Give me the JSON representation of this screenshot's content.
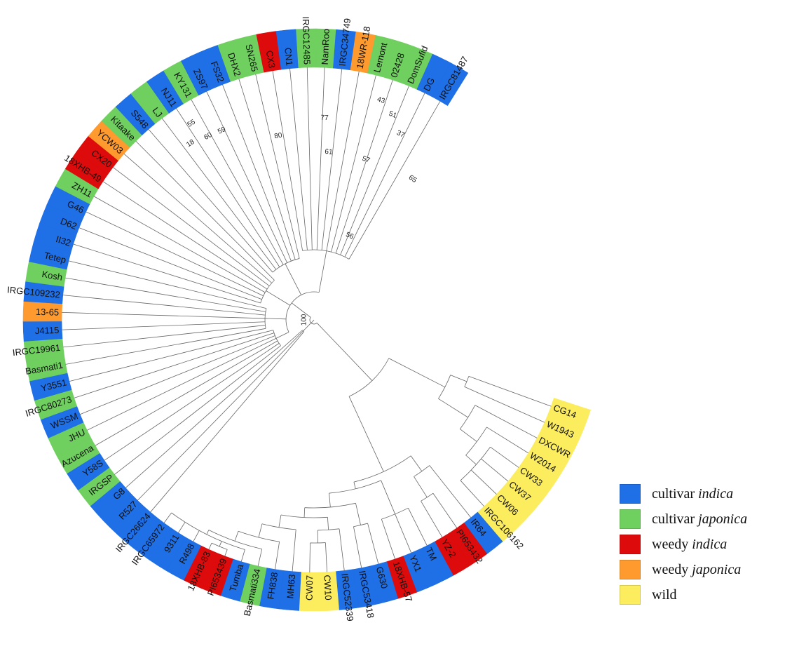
{
  "legend": [
    {
      "key": "ci",
      "text": "cultivar ",
      "italic": "indica",
      "color": "#1f6fe6"
    },
    {
      "key": "cj",
      "text": "cultivar ",
      "italic": "japonica",
      "color": "#6fcf5f"
    },
    {
      "key": "wi",
      "text": "weedy ",
      "italic": "indica",
      "color": "#dd0b0b"
    },
    {
      "key": "wj",
      "text": "weedy ",
      "italic": "japonica",
      "color": "#ff9a2e"
    },
    {
      "key": "wild",
      "text": "wild",
      "italic": "",
      "color": "#fced5e"
    }
  ],
  "colors": {
    "ci": "#1f6fe6",
    "cj": "#6fcf5f",
    "wi": "#dd0b0b",
    "wj": "#ff9a2e",
    "wild": "#fced5e"
  },
  "tips": [
    {
      "label": "CG14",
      "group": "wild"
    },
    {
      "label": "W1943",
      "group": "wild"
    },
    {
      "label": "DXCWR",
      "group": "wild"
    },
    {
      "label": "W2014",
      "group": "wild"
    },
    {
      "label": "CW33",
      "group": "wild"
    },
    {
      "label": "CW37",
      "group": "wild"
    },
    {
      "label": "CW06",
      "group": "wild"
    },
    {
      "label": "IRGC106162",
      "group": "wild"
    },
    {
      "label": "IR64",
      "group": "ci"
    },
    {
      "label": "PI653432",
      "group": "wi"
    },
    {
      "label": "YZ-2",
      "group": "wi"
    },
    {
      "label": "TM",
      "group": "ci"
    },
    {
      "label": "YX1",
      "group": "ci"
    },
    {
      "label": "18XHB-57",
      "group": "wi"
    },
    {
      "label": "G630",
      "group": "ci"
    },
    {
      "label": "IRGC53418",
      "group": "ci"
    },
    {
      "label": "IRGC52339",
      "group": "ci"
    },
    {
      "label": "CW10",
      "group": "wild"
    },
    {
      "label": "CW07",
      "group": "wild"
    },
    {
      "label": "MH63",
      "group": "ci"
    },
    {
      "label": "FH838",
      "group": "ci"
    },
    {
      "label": "Basmati334",
      "group": "cj"
    },
    {
      "label": "Tumba",
      "group": "ci"
    },
    {
      "label": "PI653439",
      "group": "wi"
    },
    {
      "label": "18XHB-83",
      "group": "wi"
    },
    {
      "label": "R498",
      "group": "ci"
    },
    {
      "label": "9311",
      "group": "ci"
    },
    {
      "label": "IRGC65972",
      "group": "ci"
    },
    {
      "label": "IRGC26624",
      "group": "ci"
    },
    {
      "label": "R527",
      "group": "ci"
    },
    {
      "label": "G8",
      "group": "ci"
    },
    {
      "label": "IRGSP",
      "group": "cj"
    },
    {
      "label": "Y58S",
      "group": "ci"
    },
    {
      "label": "Azucena",
      "group": "cj"
    },
    {
      "label": "JHU",
      "group": "cj"
    },
    {
      "label": "WSSM",
      "group": "ci"
    },
    {
      "label": "IRGC80273",
      "group": "cj"
    },
    {
      "label": "Y3551",
      "group": "ci"
    },
    {
      "label": "Basmati1",
      "group": "cj"
    },
    {
      "label": "IRGC19961",
      "group": "cj"
    },
    {
      "label": "J4115",
      "group": "ci"
    },
    {
      "label": "13-65",
      "group": "wj"
    },
    {
      "label": "IRGC109232",
      "group": "ci"
    },
    {
      "label": "Kosh",
      "group": "cj"
    },
    {
      "label": "Tetep",
      "group": "ci"
    },
    {
      "label": "II32",
      "group": "ci"
    },
    {
      "label": "D62",
      "group": "ci"
    },
    {
      "label": "G46",
      "group": "ci"
    },
    {
      "label": "ZH11",
      "group": "cj"
    },
    {
      "label": "18XHB-49",
      "group": "wi"
    },
    {
      "label": "CX20",
      "group": "wi"
    },
    {
      "label": "YCW03",
      "group": "wj"
    },
    {
      "label": "Kitaake",
      "group": "cj"
    },
    {
      "label": "S548",
      "group": "ci"
    },
    {
      "label": "LJ",
      "group": "cj"
    },
    {
      "label": "NJ11",
      "group": "ci"
    },
    {
      "label": "KY131",
      "group": "cj"
    },
    {
      "label": "ZS97",
      "group": "ci"
    },
    {
      "label": "FS32",
      "group": "ci"
    },
    {
      "label": "DHX2",
      "group": "cj"
    },
    {
      "label": "SN265",
      "group": "cj"
    },
    {
      "label": "CX3",
      "group": "wi"
    },
    {
      "label": "CN1",
      "group": "ci"
    },
    {
      "label": "IRGC12485",
      "group": "cj"
    },
    {
      "label": "NamRoo",
      "group": "cj"
    },
    {
      "label": "IRGC34749",
      "group": "ci"
    },
    {
      "label": "18WR-118",
      "group": "wj"
    },
    {
      "label": "Lemont",
      "group": "cj"
    },
    {
      "label": "02428",
      "group": "cj"
    },
    {
      "label": "DomSufid",
      "group": "cj"
    },
    {
      "label": "DG",
      "group": "ci"
    },
    {
      "label": "IRGC81487",
      "group": "ci"
    }
  ],
  "bootstrap_values": [
    {
      "value": "100",
      "a": 180,
      "r": 14
    },
    {
      "value": "56",
      "a": 67,
      "r": 130
    },
    {
      "value": "65",
      "a": 55,
      "r": 245
    },
    {
      "value": "57",
      "a": 72,
      "r": 240
    },
    {
      "value": "61",
      "a": 85,
      "r": 240
    },
    {
      "value": "37",
      "a": 65,
      "r": 292
    },
    {
      "value": "51",
      "a": 69,
      "r": 313
    },
    {
      "value": "43",
      "a": 73,
      "r": 327
    },
    {
      "value": "77",
      "a": 87,
      "r": 288
    },
    {
      "value": "80",
      "a": 101,
      "r": 267
    },
    {
      "value": "59",
      "a": 116,
      "r": 300
    },
    {
      "value": "60",
      "a": 120,
      "r": 302
    },
    {
      "value": "18",
      "a": 125,
      "r": 307
    },
    {
      "value": "55",
      "a": 122,
      "r": 330
    }
  ]
}
